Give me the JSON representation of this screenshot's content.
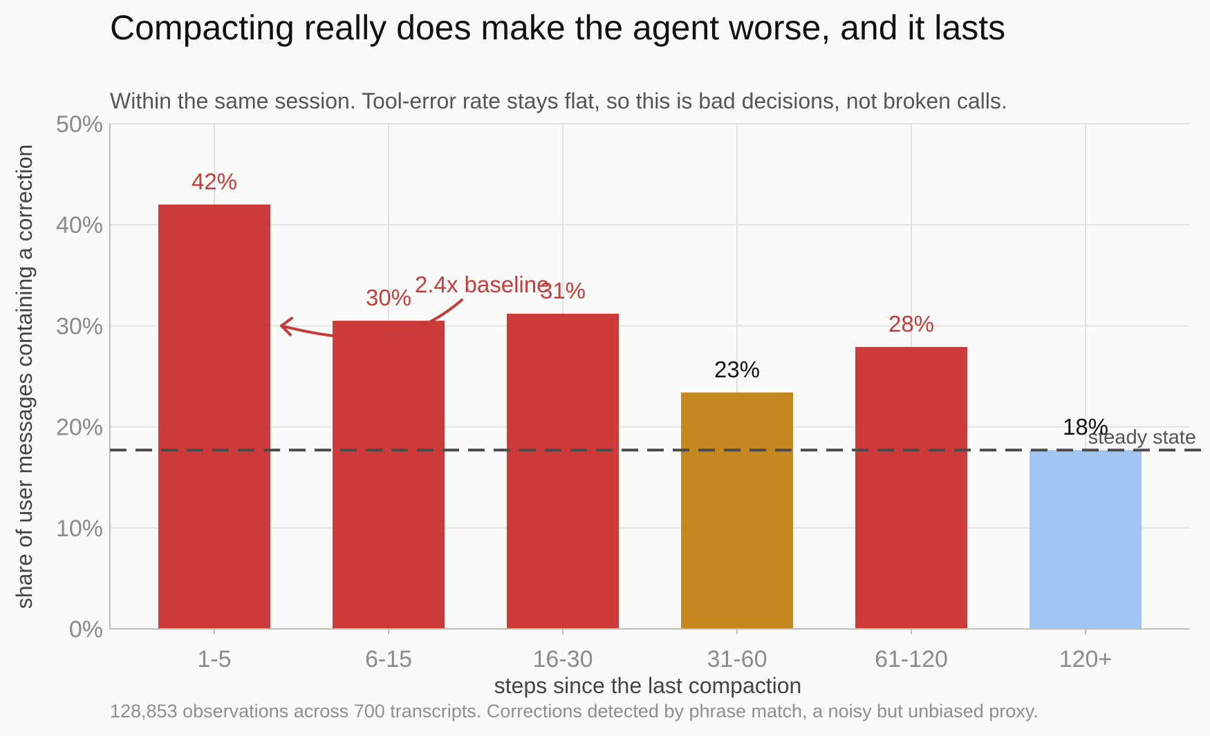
{
  "chart_data": {
    "type": "bar",
    "title": "Compacting really does make the agent worse, and it lasts",
    "subtitle": "Within the same session. Tool-error rate stays flat, so this is bad decisions, not broken calls.",
    "xlabel": "steps since the last compaction",
    "ylabel": "share of user messages containing a correction",
    "footnote": "128,853 observations across 700 transcripts. Corrections detected by phrase match, a noisy but unbiased proxy.",
    "categories": [
      "1-5",
      "6-15",
      "16-30",
      "31-60",
      "61-120",
      "120+"
    ],
    "values": [
      42,
      30.5,
      31.2,
      23.4,
      27.9,
      17.7
    ],
    "value_labels": [
      "42%",
      "30%",
      "31%",
      "23%",
      "28%",
      "18%"
    ],
    "bar_colors": [
      "#cc3a3a",
      "#cc3a3a",
      "#cc3a3a",
      "#c5871f",
      "#cc3a3a",
      "#a0c5f0"
    ],
    "label_colors": [
      "#c63c3c",
      "#c63c3c",
      "#c63c3c",
      "#111111",
      "#c63c3c",
      "#111111"
    ],
    "ylim": [
      0,
      50
    ],
    "yticks": [
      0,
      10,
      20,
      30,
      40,
      50
    ],
    "ytick_labels": [
      "0%",
      "10%",
      "20%",
      "30%",
      "40%",
      "50%"
    ],
    "grid": true,
    "reference_line": {
      "value": 17.7,
      "label": "steady state",
      "color": "#4a4a4a",
      "style": "dashed"
    },
    "annotation": {
      "text": "2.4x baseline",
      "color": "#c63c3c",
      "points_to_category": "1-5",
      "points_to_value": 30
    }
  }
}
